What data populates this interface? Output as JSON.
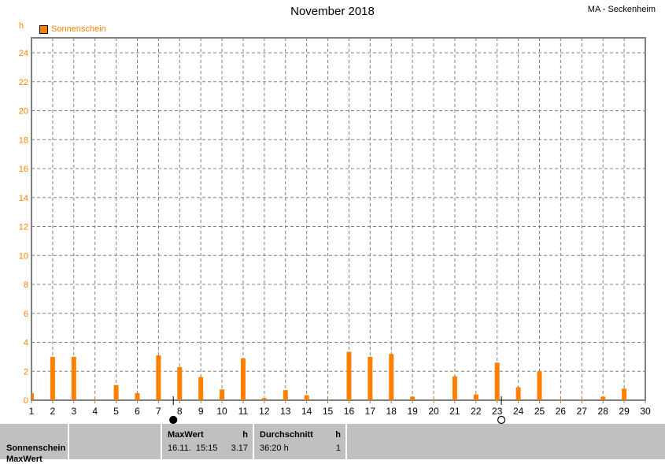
{
  "chart_data": {
    "type": "bar",
    "title": "November 2018",
    "station": "MA - Seckenheim",
    "ylabel": "h",
    "ylim": [
      0,
      24
    ],
    "yticks": [
      0,
      2,
      4,
      6,
      8,
      10,
      12,
      14,
      16,
      18,
      20,
      22,
      24
    ],
    "xlim": [
      1,
      30
    ],
    "grid": true,
    "legend_placement": "top-left",
    "series": [
      {
        "name": "Sonnenschein",
        "color": "#ff8000",
        "x": [
          1,
          2,
          3,
          4,
          5,
          6,
          7,
          8,
          9,
          10,
          11,
          12,
          13,
          14,
          15,
          16,
          17,
          18,
          19,
          20,
          21,
          22,
          23,
          24,
          25,
          26,
          27,
          28,
          29,
          30
        ],
        "values": [
          0.5,
          3.0,
          3.0,
          0.05,
          1.05,
          0.5,
          3.1,
          2.3,
          1.6,
          0.75,
          2.9,
          0.15,
          0.7,
          0.35,
          0.05,
          3.35,
          3.0,
          3.2,
          0.25,
          0.05,
          1.65,
          0.4,
          2.6,
          0.9,
          2.0,
          0.05,
          0.05,
          0.25,
          0.8,
          0.0
        ]
      }
    ],
    "moon_phases": [
      {
        "phase": "new-moon",
        "day": 7.7
      },
      {
        "phase": "full-moon",
        "day": 23.2
      }
    ]
  },
  "panel": {
    "row_label": "Sonnenschein",
    "row_label2": "MaxWert",
    "max_header": "MaxWert",
    "max_unit": "h",
    "max_date": "16.11.  15:15",
    "max_value": "3.17",
    "avg_header": "Durchschnitt",
    "avg_unit": "h",
    "avg_value": "36:20 h",
    "avg_extra": "1"
  }
}
